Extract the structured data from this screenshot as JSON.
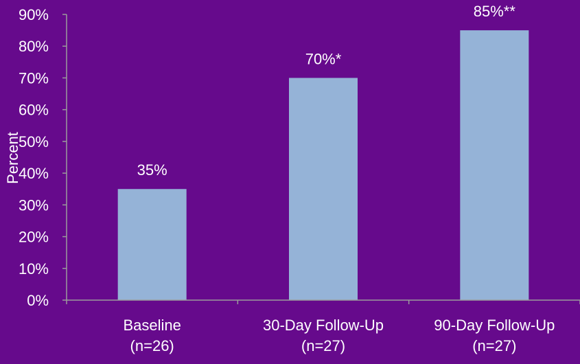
{
  "chart_data": {
    "type": "bar",
    "title": "",
    "xlabel": "",
    "ylabel": "Percent",
    "ylim": [
      0,
      90
    ],
    "yticks": [
      0,
      10,
      20,
      30,
      40,
      50,
      60,
      70,
      80,
      90
    ],
    "ytick_format": "%",
    "grid": false,
    "categories": [
      {
        "line1": "Baseline",
        "line2": "(n=26)"
      },
      {
        "line1": "30-Day Follow-Up",
        "line2": "(n=27)"
      },
      {
        "line1": "90-Day Follow-Up",
        "line2": "(n=27)"
      }
    ],
    "values": [
      35,
      70,
      85
    ],
    "data_labels": [
      "35%",
      "70%*",
      "85%**"
    ],
    "colors": {
      "background": "#660a8c",
      "bar": "#95b3d7",
      "axis": "#9b9b9b",
      "text": "#ffffff"
    }
  }
}
